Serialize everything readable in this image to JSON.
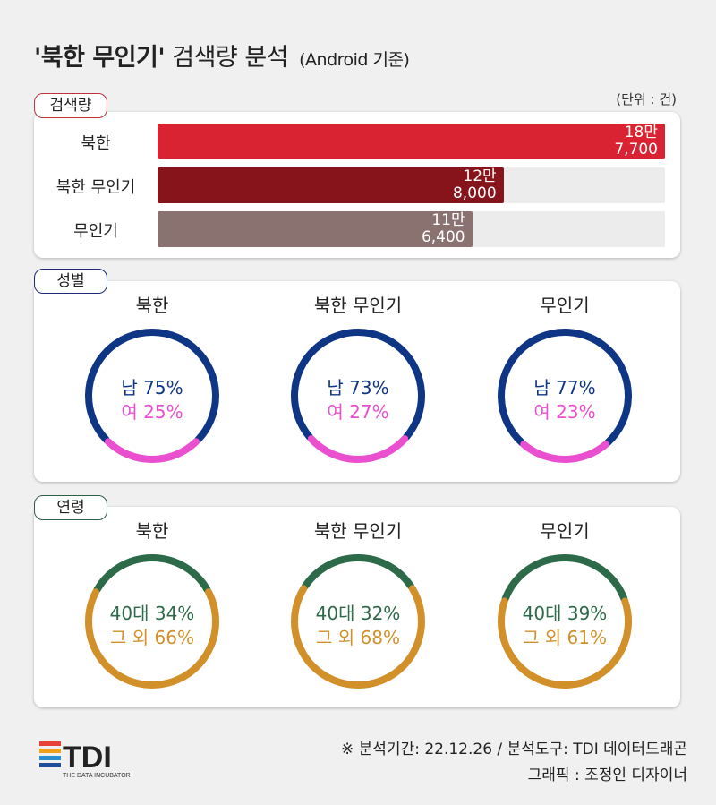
{
  "title": {
    "main": "'북한 무인기'",
    "rest": "검색량 분석",
    "sub": "(Android 기준)"
  },
  "sections": {
    "volume": {
      "tag": "검색량",
      "unit": "(단위 : 건)",
      "color": "#c0313a"
    },
    "gender": {
      "tag": "성별",
      "color": "#1f2a7a"
    },
    "age": {
      "tag": "연령",
      "color": "#2e5e45"
    }
  },
  "chart_data": [
    {
      "type": "bar",
      "orientation": "horizontal",
      "categories": [
        "북한",
        "북한 무인기",
        "무인기"
      ],
      "values": [
        187700,
        128000,
        116400
      ],
      "value_labels": [
        "18만\n7,700",
        "12만\n8,000",
        "11만\n6,400"
      ],
      "colors": [
        "#d92332",
        "#87131b",
        "#8a7270"
      ],
      "xlim": [
        0,
        187700
      ],
      "unit": "(단위 : 건)"
    },
    {
      "type": "pie",
      "style": "donut",
      "group": "성별",
      "charts": [
        {
          "title": "북한",
          "slices": [
            {
              "label": "남 75%",
              "value": 75,
              "color": "#0f3585"
            },
            {
              "label": "여 25%",
              "value": 25,
              "color": "#ea4fcf"
            }
          ]
        },
        {
          "title": "북한 무인기",
          "slices": [
            {
              "label": "남 73%",
              "value": 73,
              "color": "#0f3585"
            },
            {
              "label": "여 27%",
              "value": 27,
              "color": "#ea4fcf"
            }
          ]
        },
        {
          "title": "무인기",
          "slices": [
            {
              "label": "남 77%",
              "value": 77,
              "color": "#0f3585"
            },
            {
              "label": "여 23%",
              "value": 23,
              "color": "#ea4fcf"
            }
          ]
        }
      ]
    },
    {
      "type": "pie",
      "style": "donut",
      "group": "연령",
      "charts": [
        {
          "title": "북한",
          "slices": [
            {
              "label": "40대 34%",
              "value": 34,
              "color": "#2d6a4a"
            },
            {
              "label": "그 외 66%",
              "value": 66,
              "color": "#d2902a"
            }
          ]
        },
        {
          "title": "북한 무인기",
          "slices": [
            {
              "label": "40대 32%",
              "value": 32,
              "color": "#2d6a4a"
            },
            {
              "label": "그 외 68%",
              "value": 68,
              "color": "#d2902a"
            }
          ]
        },
        {
          "title": "무인기",
          "slices": [
            {
              "label": "40대 39%",
              "value": 39,
              "color": "#2d6a4a"
            },
            {
              "label": "그 외 61%",
              "value": 61,
              "color": "#d2902a"
            }
          ]
        }
      ]
    }
  ],
  "footer": {
    "period": "※ 분석기간: 22.12.26 / 분석도구: TDI 데이터드래곤",
    "credit": "그래픽 : 조정인 디자이너",
    "logo_text": "TDI",
    "logo_sub": "THE DATA INCUBATOR"
  }
}
